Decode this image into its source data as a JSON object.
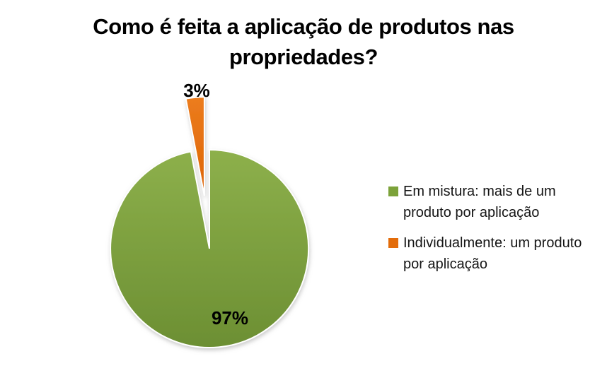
{
  "title": {
    "text": "Como é feita a aplicação de produtos nas propriedades?",
    "lines": [
      "Como é feita a aplicação de produtos nas",
      "propriedades?"
    ]
  },
  "chart_data": {
    "type": "pie",
    "title": "Como é feita a aplicação de produtos nas propriedades?",
    "total": 100,
    "start_angle_deg": 0,
    "direction": "clockwise",
    "legend_position": "right",
    "background_color": "#ffffff",
    "slices": [
      {
        "label": "Em mistura: mais de um produto por aplicação",
        "value": 97,
        "data_label": "97%",
        "color": "#7CA23A",
        "color_top": "#8DB04B",
        "color_bottom": "#6C8F33",
        "exploded": false
      },
      {
        "label": "Individualmente: um produto por aplicação",
        "value": 3,
        "data_label": "3%",
        "color": "#E36C0A",
        "color_top": "#EC7C1D",
        "color_bottom": "#DD6506",
        "exploded": true
      }
    ]
  }
}
